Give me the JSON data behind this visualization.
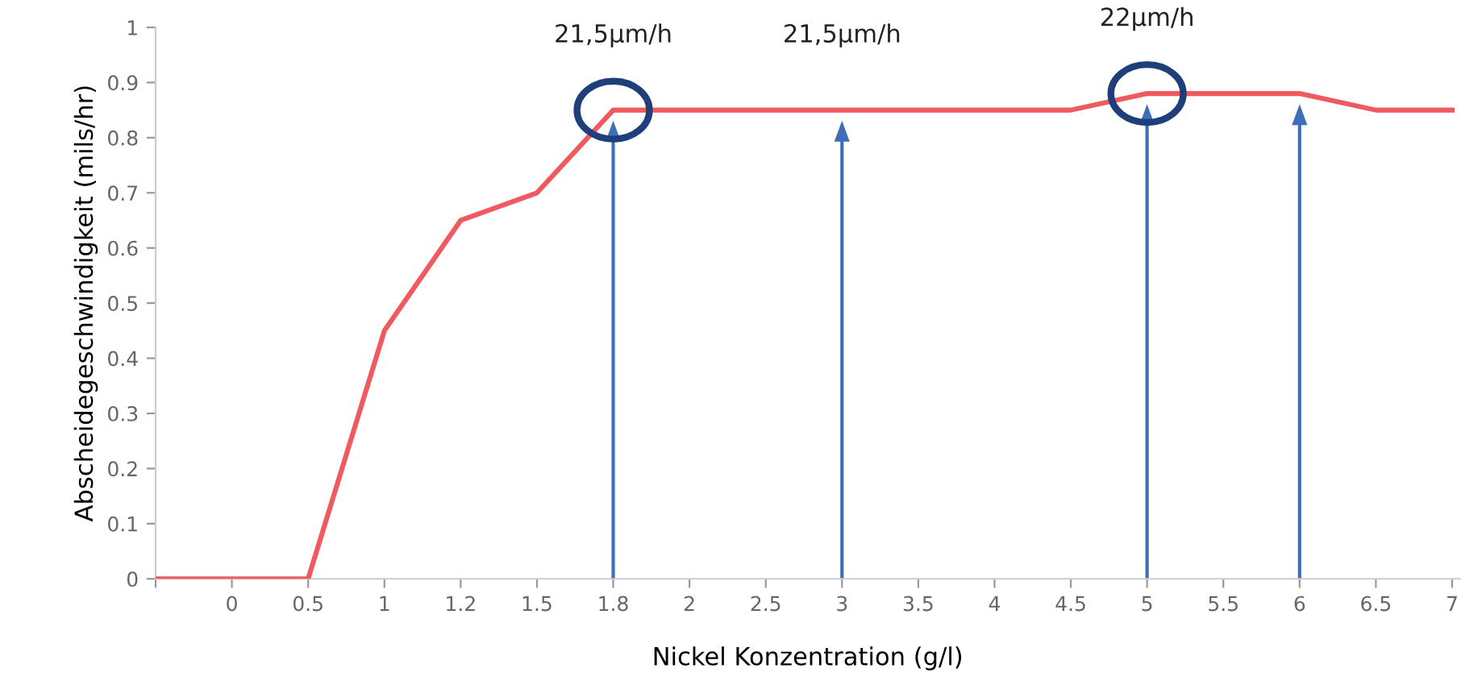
{
  "chart_data": {
    "type": "line",
    "xlabel": "Nickel Konzentration (g/l)",
    "ylabel": "Abscheidegeschwindigkeit (mils/hr)",
    "categories": [
      null,
      "0",
      "0.5",
      "1",
      "1.2",
      "1.5",
      "1.8",
      "2",
      "2.5",
      "3",
      "3.5",
      "4",
      "4.5",
      "5",
      "5.5",
      "6",
      "6.5",
      "7"
    ],
    "series": [
      {
        "color": "#f05a5e",
        "values": [
          0,
          0,
          0,
          0.45,
          0.65,
          0.7,
          0.85,
          0.85,
          0.85,
          0.85,
          0.85,
          0.85,
          0.85,
          0.88,
          0.88,
          0.88,
          0.85,
          0.85
        ]
      }
    ],
    "ylim": [
      0,
      1
    ],
    "yticks": [
      0,
      0.1,
      0.2,
      0.3,
      0.4,
      0.5,
      0.6,
      0.7,
      0.8,
      0.9,
      1
    ],
    "annotations": [
      {
        "text": "21,5µm/h",
        "x": "1.8",
        "y": 0.85
      },
      {
        "text": "21,5µm/h",
        "x": "3",
        "y": 0.85
      },
      {
        "text": "22µm/h",
        "x": "5",
        "y": 0.88
      }
    ],
    "ref_lines": [
      {
        "axis": "x",
        "value": "1.8",
        "color": "#3d6fb8"
      },
      {
        "axis": "x",
        "value": "3",
        "color": "#3d6fb8"
      },
      {
        "axis": "x",
        "value": "5",
        "color": "#3d6fb8"
      },
      {
        "axis": "x",
        "value": "6",
        "color": "#3d6fb8"
      }
    ],
    "grid": false,
    "legend": false,
    "marker": "none",
    "line_style": "solid"
  }
}
